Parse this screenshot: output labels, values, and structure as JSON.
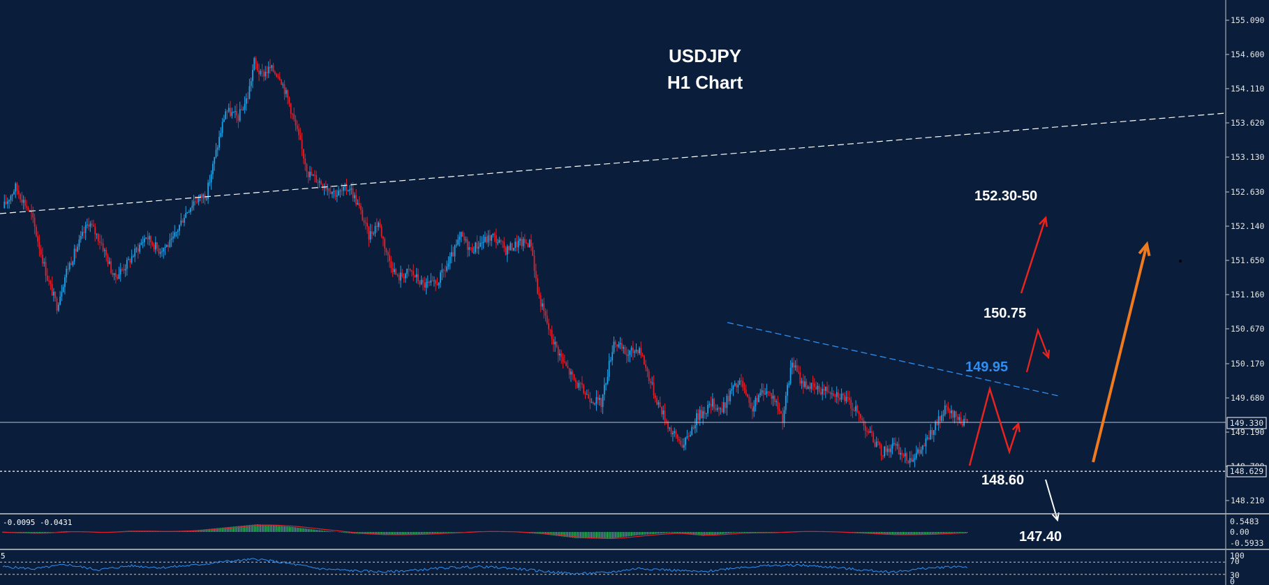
{
  "chart_data": {
    "type": "candlestick",
    "title": "USDJPY",
    "subtitle": "H1 Chart",
    "symbol": "USDJPY",
    "timeframe": "H1",
    "ylim": [
      147.95,
      155.25
    ],
    "y_ticks": [
      "155.090",
      "154.600",
      "154.110",
      "153.620",
      "153.130",
      "152.630",
      "152.140",
      "151.650",
      "151.160",
      "150.670",
      "150.170",
      "149.680",
      "149.190",
      "148.700",
      "148.210"
    ],
    "current_price": "149.330",
    "support_price": "148.629",
    "annotations": {
      "target_high": "152.30-50",
      "resistance_1": "150.75",
      "trendline": "149.95",
      "support": "148.60",
      "target_low": "147.40"
    },
    "colors": {
      "bull": "#1fa2e6",
      "bear": "#e0202a",
      "background": "#0a1e3c",
      "trend_blue": "#2f8ff0",
      "arrow_orange": "#f07a1e",
      "arrow_red": "#e8241e",
      "macd_hist": "#3cc873",
      "macd_signal": "#e0202a",
      "rsi_line": "#2f8ff0"
    },
    "macd": {
      "readout": "-0.0095 -0.0431",
      "y_ticks": [
        "0.5483",
        "0.00",
        "-0.5933"
      ]
    },
    "rsi": {
      "left_label": "5",
      "y_ticks": [
        "100",
        "70",
        "30",
        "0"
      ]
    },
    "price_path": [
      [
        0,
        152.4
      ],
      [
        8,
        152.7
      ],
      [
        18,
        152.3
      ],
      [
        28,
        151.4
      ],
      [
        34,
        151.0
      ],
      [
        40,
        151.5
      ],
      [
        46,
        151.8
      ],
      [
        54,
        152.2
      ],
      [
        62,
        151.9
      ],
      [
        70,
        151.4
      ],
      [
        78,
        151.6
      ],
      [
        90,
        152.0
      ],
      [
        98,
        151.8
      ],
      [
        106,
        151.9
      ],
      [
        114,
        152.3
      ],
      [
        120,
        152.5
      ],
      [
        128,
        152.6
      ],
      [
        134,
        153.2
      ],
      [
        140,
        153.8
      ],
      [
        148,
        153.7
      ],
      [
        154,
        154.0
      ],
      [
        158,
        154.5
      ],
      [
        162,
        154.3
      ],
      [
        168,
        154.4
      ],
      [
        174,
        154.3
      ],
      [
        180,
        153.9
      ],
      [
        186,
        153.4
      ],
      [
        192,
        152.9
      ],
      [
        198,
        152.8
      ],
      [
        204,
        152.7
      ],
      [
        210,
        152.6
      ],
      [
        218,
        152.7
      ],
      [
        224,
        152.4
      ],
      [
        230,
        152.0
      ],
      [
        236,
        152.2
      ],
      [
        242,
        151.7
      ],
      [
        248,
        151.4
      ],
      [
        256,
        151.5
      ],
      [
        264,
        151.3
      ],
      [
        272,
        151.3
      ],
      [
        280,
        151.6
      ],
      [
        288,
        152.0
      ],
      [
        294,
        151.8
      ],
      [
        300,
        151.9
      ],
      [
        308,
        152.0
      ],
      [
        316,
        151.8
      ],
      [
        324,
        151.9
      ],
      [
        332,
        151.9
      ],
      [
        336,
        151.2
      ],
      [
        344,
        150.6
      ],
      [
        352,
        150.2
      ],
      [
        360,
        149.9
      ],
      [
        368,
        149.7
      ],
      [
        376,
        149.6
      ],
      [
        384,
        150.5
      ],
      [
        392,
        150.3
      ],
      [
        400,
        150.4
      ],
      [
        410,
        149.7
      ],
      [
        420,
        149.2
      ],
      [
        428,
        149.0
      ],
      [
        436,
        149.4
      ],
      [
        446,
        149.6
      ],
      [
        452,
        149.5
      ],
      [
        458,
        149.8
      ],
      [
        464,
        149.9
      ],
      [
        470,
        149.5
      ],
      [
        478,
        149.8
      ],
      [
        484,
        149.7
      ],
      [
        490,
        149.4
      ],
      [
        496,
        150.2
      ],
      [
        502,
        149.9
      ],
      [
        512,
        149.8
      ],
      [
        520,
        149.8
      ],
      [
        528,
        149.7
      ],
      [
        536,
        149.5
      ],
      [
        544,
        149.2
      ],
      [
        552,
        148.9
      ],
      [
        560,
        149.0
      ],
      [
        568,
        148.8
      ],
      [
        576,
        148.9
      ],
      [
        584,
        149.2
      ],
      [
        592,
        149.5
      ],
      [
        600,
        149.4
      ],
      [
        606,
        149.3
      ]
    ],
    "macd_path": [
      [
        0,
        -0.05
      ],
      [
        20,
        -0.1
      ],
      [
        40,
        0.05
      ],
      [
        60,
        -0.05
      ],
      [
        80,
        0.08
      ],
      [
        100,
        0.02
      ],
      [
        120,
        0.1
      ],
      [
        140,
        0.3
      ],
      [
        160,
        0.5
      ],
      [
        180,
        0.35
      ],
      [
        200,
        0.1
      ],
      [
        220,
        -0.1
      ],
      [
        240,
        -0.2
      ],
      [
        260,
        -0.15
      ],
      [
        280,
        -0.05
      ],
      [
        300,
        0.05
      ],
      [
        320,
        0.0
      ],
      [
        340,
        -0.15
      ],
      [
        360,
        -0.4
      ],
      [
        380,
        -0.45
      ],
      [
        400,
        -0.2
      ],
      [
        420,
        -0.05
      ],
      [
        440,
        -0.25
      ],
      [
        460,
        -0.05
      ],
      [
        480,
        -0.05
      ],
      [
        500,
        0.05
      ],
      [
        520,
        0.0
      ],
      [
        540,
        -0.1
      ],
      [
        560,
        -0.2
      ],
      [
        580,
        -0.15
      ],
      [
        600,
        -0.05
      ],
      [
        606,
        -0.04
      ]
    ],
    "rsi_path": [
      [
        0,
        55
      ],
      [
        20,
        48
      ],
      [
        40,
        62
      ],
      [
        60,
        45
      ],
      [
        80,
        58
      ],
      [
        100,
        52
      ],
      [
        120,
        60
      ],
      [
        140,
        72
      ],
      [
        160,
        80
      ],
      [
        180,
        65
      ],
      [
        200,
        48
      ],
      [
        220,
        42
      ],
      [
        240,
        38
      ],
      [
        260,
        44
      ],
      [
        280,
        52
      ],
      [
        300,
        55
      ],
      [
        320,
        50
      ],
      [
        340,
        40
      ],
      [
        360,
        32
      ],
      [
        380,
        36
      ],
      [
        400,
        50
      ],
      [
        420,
        44
      ],
      [
        440,
        38
      ],
      [
        460,
        52
      ],
      [
        480,
        58
      ],
      [
        500,
        60
      ],
      [
        520,
        54
      ],
      [
        540,
        44
      ],
      [
        560,
        38
      ],
      [
        580,
        50
      ],
      [
        600,
        56
      ],
      [
        606,
        54
      ]
    ]
  }
}
